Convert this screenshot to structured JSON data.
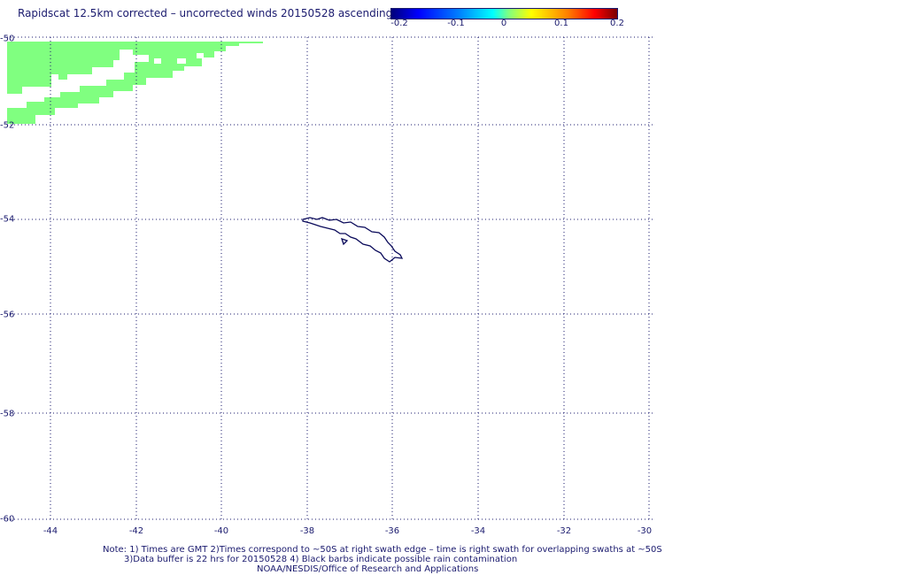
{
  "title": "Rapidscat 12.5km corrected – uncorrected winds 20150528 ascending",
  "colorbar": {
    "ticks": [
      "-0.2",
      "-0.1",
      "0",
      "0.1",
      "0.2"
    ]
  },
  "axes": {
    "x_ticks": [
      "-44",
      "-42",
      "-40",
      "-38",
      "-36",
      "-34",
      "-32",
      "-30"
    ],
    "y_ticks": [
      "-50",
      "-52",
      "-54",
      "-56",
      "-58",
      "-60"
    ]
  },
  "notes": {
    "line1": "Note: 1) Times are GMT 2)Times correspond to ~50S at right swath edge – time is right swath for overlapping swaths at ~50S",
    "line2": "3)Data buffer is 22 hrs for 20150528 4) Black barbs indicate possible rain contamination",
    "line3": "NOAA/NESDIS/Office of Research and Applications"
  },
  "colors": {
    "swath": "#80ff80",
    "grid": "#1a1a6e",
    "coast": "#0a0a5a"
  }
}
